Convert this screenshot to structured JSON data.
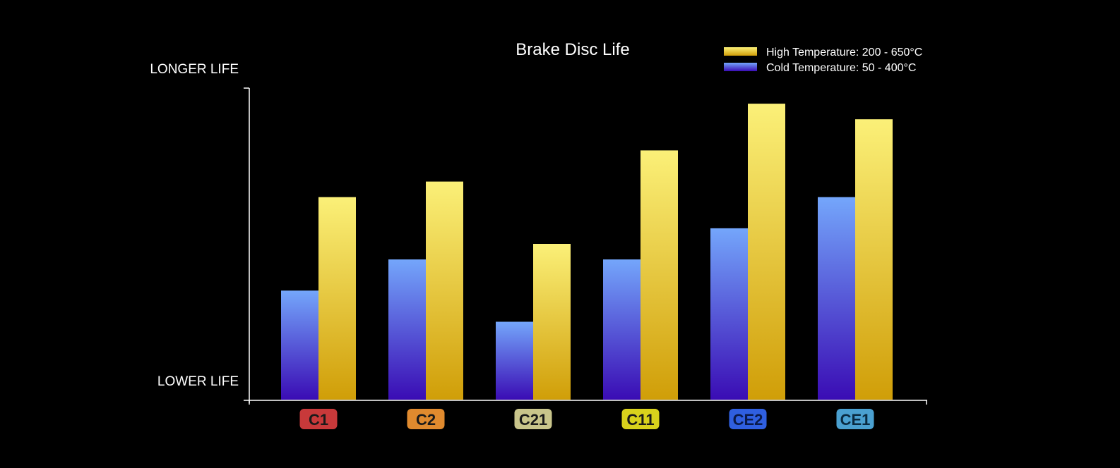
{
  "chart_data": {
    "type": "bar",
    "title": "Brake Disc Life",
    "y_top_label": "LONGER LIFE",
    "y_bottom_label": "LOWER LIFE",
    "ylim": [
      0,
      10
    ],
    "grid": false,
    "legend_position": "top-right",
    "categories": [
      {
        "label": "C1",
        "badge_color": "#c8393a",
        "text_color": "#1a1a1a"
      },
      {
        "label": "C2",
        "badge_color": "#e08a2e",
        "text_color": "#1a1a1a"
      },
      {
        "label": "C21",
        "badge_color": "#c9c58b",
        "text_color": "#1a1a1a"
      },
      {
        "label": "C11",
        "badge_color": "#d9d21c",
        "text_color": "#1a1a1a"
      },
      {
        "label": "CE2",
        "badge_color": "#2f5fe0",
        "text_color": "#0a1a4a"
      },
      {
        "label": "CE1",
        "badge_color": "#4aa0d0",
        "text_color": "#0a2a40"
      }
    ],
    "series": [
      {
        "name": "Cold Temperature: 50 - 400°C",
        "color_top": "#74a6fb",
        "color_bottom": "#3a0cb4",
        "values": [
          3.5,
          4.5,
          2.5,
          4.5,
          5.5,
          6.5
        ]
      },
      {
        "name": "High Temperature: 200 - 650°C",
        "color_top": "#fbf078",
        "color_bottom": "#d09e08",
        "values": [
          6.5,
          7.0,
          5.0,
          8.0,
          9.5,
          9.0
        ]
      }
    ]
  }
}
